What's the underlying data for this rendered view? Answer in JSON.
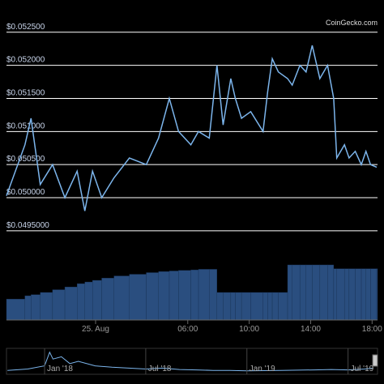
{
  "chart_data": [
    {
      "type": "line",
      "watermark": "CoinGecko.com",
      "color": "#7cb5ec",
      "grid": true,
      "x": [
        -5.8,
        -4.6,
        -4.2,
        -3.6,
        -2.8,
        -2.0,
        -1.2,
        -0.7,
        -0.2,
        0.4,
        1.2,
        2.2,
        3.3,
        4.1,
        4.8,
        5.4,
        6.2,
        6.7,
        7.4,
        7.9,
        8.3,
        8.8,
        9.1,
        9.5,
        10.1,
        10.9,
        11.2,
        11.5,
        11.9,
        12.5,
        12.8,
        13.3,
        13.7,
        14.1,
        14.6,
        15.1,
        15.5,
        15.7,
        16.2,
        16.5,
        16.9,
        17.3,
        17.6,
        17.9,
        18.3
      ],
      "values": [
        0.05003,
        0.0508,
        0.0512,
        0.0502,
        0.0505,
        0.05,
        0.0504,
        0.0498,
        0.0504,
        0.05,
        0.0503,
        0.0506,
        0.0505,
        0.0509,
        0.0515,
        0.051,
        0.0508,
        0.051,
        0.0509,
        0.052,
        0.0511,
        0.0518,
        0.0515,
        0.0512,
        0.0513,
        0.051,
        0.0516,
        0.0521,
        0.0519,
        0.0518,
        0.0517,
        0.052,
        0.0519,
        0.0523,
        0.0518,
        0.052,
        0.0515,
        0.0506,
        0.0508,
        0.0506,
        0.0507,
        0.0505,
        0.0507,
        0.0505,
        0.05046
      ],
      "xlim": [
        -5.8,
        18.3
      ],
      "xticks": [
        {
          "value": 0,
          "label": "25. Aug"
        },
        {
          "value": 6,
          "label": "06:00"
        },
        {
          "value": 10,
          "label": "10:00"
        },
        {
          "value": 14,
          "label": "14:00"
        },
        {
          "value": 18,
          "label": "18:00"
        }
      ],
      "ylim": [
        0.04929,
        0.05262
      ],
      "yticks": [
        {
          "value": 0.0525,
          "label": "$0.052500"
        },
        {
          "value": 0.052,
          "label": "$0.052000"
        },
        {
          "value": 0.0515,
          "label": "$0.051500"
        },
        {
          "value": 0.051,
          "label": "$0.051000"
        },
        {
          "value": 0.0505,
          "label": "$0.050500"
        },
        {
          "value": 0.05,
          "label": "$0.050000"
        },
        {
          "value": 0.0495,
          "label": "$0.0495000"
        }
      ]
    },
    {
      "type": "bar",
      "color": "#2a4e7f",
      "x": [
        -5.8,
        -4.6,
        -4.2,
        -3.6,
        -2.8,
        -2.0,
        -1.2,
        -0.7,
        -0.2,
        0.4,
        1.2,
        2.2,
        3.3,
        4.1,
        4.8,
        5.4,
        6.2,
        6.7,
        7.4,
        7.9,
        8.3,
        8.8,
        9.1,
        9.5,
        10.1,
        10.9,
        11.2,
        11.5,
        11.9,
        12.5,
        12.8,
        13.3,
        13.7,
        14.1,
        14.6,
        15.1,
        15.5,
        15.7,
        16.2,
        16.5,
        16.9,
        17.3,
        17.6,
        17.9,
        18.3
      ],
      "values": [
        38,
        44,
        46,
        50,
        55,
        60,
        66,
        69,
        72,
        76,
        80,
        83,
        86,
        88,
        89,
        90,
        91,
        92,
        92,
        50,
        50,
        50,
        50,
        50,
        50,
        50,
        50,
        50,
        50,
        100,
        100,
        100,
        100,
        100,
        100,
        100,
        93,
        93,
        93,
        93,
        93,
        93,
        93,
        93,
        93
      ],
      "xlim": [
        -5.8,
        18.3
      ],
      "ylim": [
        0,
        100
      ]
    },
    {
      "type": "line",
      "color": "#7cb5ec",
      "x": [
        -2.2,
        -1,
        0,
        0.3,
        0.5,
        1,
        1.5,
        2,
        3,
        4,
        5,
        6,
        7,
        8,
        9,
        10,
        11,
        12,
        14,
        16,
        17,
        18,
        19,
        19.5
      ],
      "values": [
        5,
        8,
        15,
        45,
        30,
        35,
        20,
        25,
        15,
        12,
        10,
        8,
        10,
        7,
        6,
        5,
        5,
        4,
        5,
        6,
        7,
        6,
        8,
        10
      ],
      "xlim": [
        -2.26,
        19.7
      ],
      "ylim": [
        0,
        50
      ],
      "xticks": [
        {
          "value": 0,
          "label": "Jan '18"
        },
        {
          "value": 6,
          "label": "Jul '18"
        },
        {
          "value": 12,
          "label": "Jan '19"
        },
        {
          "value": 18,
          "label": "Jul '19"
        }
      ]
    }
  ]
}
